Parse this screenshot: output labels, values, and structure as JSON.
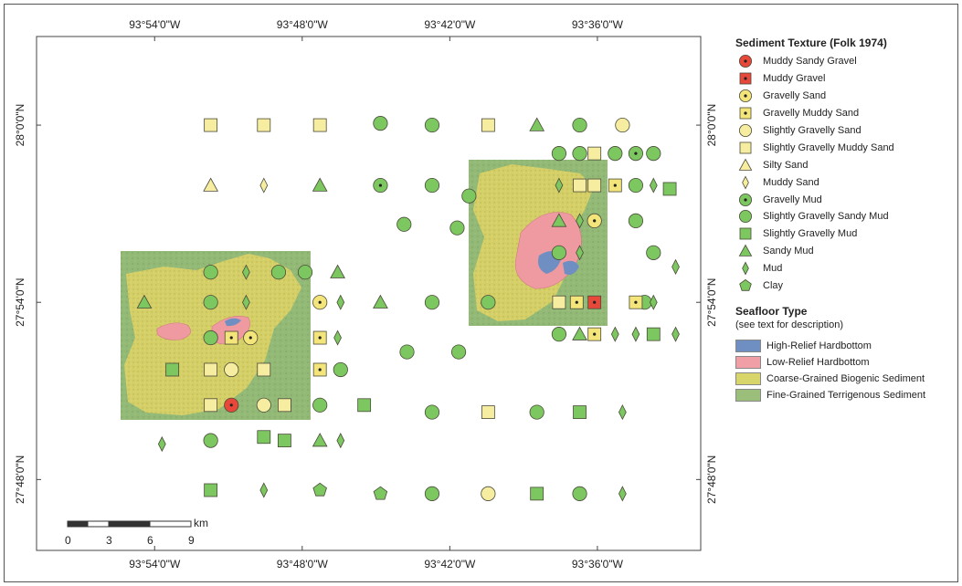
{
  "map": {
    "lon_ticks": [
      "93°54'0\"W",
      "93°48'0\"W",
      "93°42'0\"W",
      "93°36'0\"W"
    ],
    "lat_ticks": [
      "28°0'0\"N",
      "27°54'0\"N",
      "27°48'0\"N"
    ],
    "scale_bar": {
      "labels": [
        "0",
        "3",
        "6",
        "9"
      ],
      "unit": "km"
    }
  },
  "legend": {
    "texture_title": "Sediment Texture (Folk 1974)",
    "texture_items": [
      {
        "label": "Muddy Sandy Gravel",
        "symbol": "circle-dot",
        "color": "#e8483a"
      },
      {
        "label": "Muddy Gravel",
        "symbol": "square-dot",
        "color": "#e8483a"
      },
      {
        "label": "Gravelly Sand",
        "symbol": "circle-dot",
        "color": "#f3e57a"
      },
      {
        "label": "Gravelly Muddy Sand",
        "symbol": "square-dot",
        "color": "#f3e57a"
      },
      {
        "label": "Slightly Gravelly Sand",
        "symbol": "circle",
        "color": "#f7eda0"
      },
      {
        "label": "Slightly Gravelly Muddy Sand",
        "symbol": "square",
        "color": "#f7eda0"
      },
      {
        "label": "Silty Sand",
        "symbol": "triangle",
        "color": "#f7eda0"
      },
      {
        "label": "Muddy Sand",
        "symbol": "diamond",
        "color": "#f7eda0"
      },
      {
        "label": "Gravelly Mud",
        "symbol": "circle-dot",
        "color": "#7cc760"
      },
      {
        "label": "Slightly Gravelly Sandy Mud",
        "symbol": "circle",
        "color": "#7cc760"
      },
      {
        "label": "Slightly Gravelly Mud",
        "symbol": "square",
        "color": "#7cc760"
      },
      {
        "label": "Sandy Mud",
        "symbol": "triangle",
        "color": "#7cc760"
      },
      {
        "label": "Mud",
        "symbol": "diamond",
        "color": "#7cc760"
      },
      {
        "label": "Clay",
        "symbol": "pentagon",
        "color": "#7cc760"
      }
    ],
    "seafloor_title": "Seafloor Type",
    "seafloor_subtitle": "(see text for description)",
    "seafloor_items": [
      {
        "label": "High-Relief Hardbottom",
        "color": "#6f8fc2"
      },
      {
        "label": "Low-Relief Hardbottom",
        "color": "#ef9fa5"
      },
      {
        "label": "Coarse-Grained Biogenic Sediment",
        "color": "#d8d56a"
      },
      {
        "label": "Fine-Grained Terrigenous Sediment",
        "color": "#9bbf7a"
      }
    ]
  },
  "samples": [
    {
      "t": 5,
      "lon": -93.862,
      "lat": 28.0
    },
    {
      "t": 5,
      "lon": -93.826,
      "lat": 28.0
    },
    {
      "t": 5,
      "lon": -93.788,
      "lat": 28.0
    },
    {
      "t": 9,
      "lon": -93.747,
      "lat": 28.001
    },
    {
      "t": 9,
      "lon": -93.712,
      "lat": 28.0
    },
    {
      "t": 5,
      "lon": -93.674,
      "lat": 28.0
    },
    {
      "t": 11,
      "lon": -93.641,
      "lat": 28.0
    },
    {
      "t": 9,
      "lon": -93.612,
      "lat": 28.0
    },
    {
      "t": 4,
      "lon": -93.583,
      "lat": 28.0
    },
    {
      "t": 6,
      "lon": -93.862,
      "lat": 27.966
    },
    {
      "t": 7,
      "lon": -93.826,
      "lat": 27.966
    },
    {
      "t": 11,
      "lon": -93.788,
      "lat": 27.966
    },
    {
      "t": 8,
      "lon": -93.747,
      "lat": 27.966
    },
    {
      "t": 9,
      "lon": -93.712,
      "lat": 27.966
    },
    {
      "t": 9,
      "lon": -93.687,
      "lat": 27.96
    },
    {
      "t": 10,
      "lon": -93.551,
      "lat": 27.964
    },
    {
      "t": 12,
      "lon": -93.547,
      "lat": 27.92
    },
    {
      "t": 9,
      "lon": -93.731,
      "lat": 27.944
    },
    {
      "t": 9,
      "lon": -93.695,
      "lat": 27.942
    },
    {
      "t": 11,
      "lon": -93.907,
      "lat": 27.9
    },
    {
      "t": 11,
      "lon": -93.747,
      "lat": 27.9
    },
    {
      "t": 9,
      "lon": -93.712,
      "lat": 27.9
    },
    {
      "t": 9,
      "lon": -93.674,
      "lat": 27.9
    },
    {
      "t": 9,
      "lon": -93.568,
      "lat": 27.9
    },
    {
      "t": 12,
      "lon": -93.547,
      "lat": 27.882
    },
    {
      "t": 9,
      "lon": -93.729,
      "lat": 27.872
    },
    {
      "t": 9,
      "lon": -93.694,
      "lat": 27.872
    },
    {
      "t": 10,
      "lon": -93.888,
      "lat": 27.862
    },
    {
      "t": 9,
      "lon": -93.712,
      "lat": 27.838
    },
    {
      "t": 5,
      "lon": -93.674,
      "lat": 27.838
    },
    {
      "t": 9,
      "lon": -93.641,
      "lat": 27.838
    },
    {
      "t": 10,
      "lon": -93.612,
      "lat": 27.838
    },
    {
      "t": 12,
      "lon": -93.583,
      "lat": 27.838
    },
    {
      "t": 12,
      "lon": -93.895,
      "lat": 27.82
    },
    {
      "t": 10,
      "lon": -93.862,
      "lat": 27.794
    },
    {
      "t": 12,
      "lon": -93.826,
      "lat": 27.794
    },
    {
      "t": 13,
      "lon": -93.788,
      "lat": 27.794
    },
    {
      "t": 13,
      "lon": -93.747,
      "lat": 27.792
    },
    {
      "t": 9,
      "lon": -93.712,
      "lat": 27.792
    },
    {
      "t": 4,
      "lon": -93.674,
      "lat": 27.792
    },
    {
      "t": 10,
      "lon": -93.641,
      "lat": 27.792
    },
    {
      "t": 9,
      "lon": -93.612,
      "lat": 27.792
    },
    {
      "t": 12,
      "lon": -93.583,
      "lat": 27.792
    },
    {
      "t": 9,
      "lon": -93.862,
      "lat": 27.917
    },
    {
      "t": 12,
      "lon": -93.838,
      "lat": 27.917
    },
    {
      "t": 9,
      "lon": -93.816,
      "lat": 27.917
    },
    {
      "t": 9,
      "lon": -93.798,
      "lat": 27.917
    },
    {
      "t": 11,
      "lon": -93.776,
      "lat": 27.917
    },
    {
      "t": 9,
      "lon": -93.862,
      "lat": 27.9
    },
    {
      "t": 12,
      "lon": -93.838,
      "lat": 27.9
    },
    {
      "t": 2,
      "lon": -93.788,
      "lat": 27.9
    },
    {
      "t": 12,
      "lon": -93.774,
      "lat": 27.9
    },
    {
      "t": 9,
      "lon": -93.862,
      "lat": 27.88
    },
    {
      "t": 3,
      "lon": -93.848,
      "lat": 27.88
    },
    {
      "t": 2,
      "lon": -93.835,
      "lat": 27.88
    },
    {
      "t": 3,
      "lon": -93.788,
      "lat": 27.88
    },
    {
      "t": 12,
      "lon": -93.776,
      "lat": 27.88
    },
    {
      "t": 5,
      "lon": -93.862,
      "lat": 27.862
    },
    {
      "t": 4,
      "lon": -93.848,
      "lat": 27.862
    },
    {
      "t": 5,
      "lon": -93.826,
      "lat": 27.862
    },
    {
      "t": 3,
      "lon": -93.788,
      "lat": 27.862
    },
    {
      "t": 9,
      "lon": -93.774,
      "lat": 27.862
    },
    {
      "t": 5,
      "lon": -93.862,
      "lat": 27.842
    },
    {
      "t": 0,
      "lon": -93.848,
      "lat": 27.842
    },
    {
      "t": 4,
      "lon": -93.826,
      "lat": 27.842
    },
    {
      "t": 5,
      "lon": -93.812,
      "lat": 27.842
    },
    {
      "t": 9,
      "lon": -93.788,
      "lat": 27.842
    },
    {
      "t": 10,
      "lon": -93.758,
      "lat": 27.842
    },
    {
      "t": 9,
      "lon": -93.862,
      "lat": 27.822
    },
    {
      "t": 10,
      "lon": -93.826,
      "lat": 27.824
    },
    {
      "t": 10,
      "lon": -93.812,
      "lat": 27.822
    },
    {
      "t": 11,
      "lon": -93.788,
      "lat": 27.822
    },
    {
      "t": 12,
      "lon": -93.774,
      "lat": 27.822
    },
    {
      "t": 9,
      "lon": -93.626,
      "lat": 27.984
    },
    {
      "t": 9,
      "lon": -93.612,
      "lat": 27.984
    },
    {
      "t": 5,
      "lon": -93.602,
      "lat": 27.984
    },
    {
      "t": 9,
      "lon": -93.588,
      "lat": 27.984
    },
    {
      "t": 8,
      "lon": -93.574,
      "lat": 27.984
    },
    {
      "t": 9,
      "lon": -93.562,
      "lat": 27.984
    },
    {
      "t": 12,
      "lon": -93.626,
      "lat": 27.966
    },
    {
      "t": 5,
      "lon": -93.612,
      "lat": 27.966
    },
    {
      "t": 5,
      "lon": -93.602,
      "lat": 27.966
    },
    {
      "t": 3,
      "lon": -93.588,
      "lat": 27.966
    },
    {
      "t": 9,
      "lon": -93.574,
      "lat": 27.966
    },
    {
      "t": 12,
      "lon": -93.562,
      "lat": 27.966
    },
    {
      "t": 11,
      "lon": -93.626,
      "lat": 27.946
    },
    {
      "t": 12,
      "lon": -93.612,
      "lat": 27.946
    },
    {
      "t": 2,
      "lon": -93.602,
      "lat": 27.946
    },
    {
      "t": 9,
      "lon": -93.574,
      "lat": 27.946
    },
    {
      "t": 9,
      "lon": -93.626,
      "lat": 27.928
    },
    {
      "t": 12,
      "lon": -93.612,
      "lat": 27.928
    },
    {
      "t": 9,
      "lon": -93.562,
      "lat": 27.928
    },
    {
      "t": 5,
      "lon": -93.626,
      "lat": 27.9
    },
    {
      "t": 3,
      "lon": -93.614,
      "lat": 27.9
    },
    {
      "t": 1,
      "lon": -93.602,
      "lat": 27.9
    },
    {
      "t": 3,
      "lon": -93.574,
      "lat": 27.9
    },
    {
      "t": 12,
      "lon": -93.562,
      "lat": 27.9
    },
    {
      "t": 9,
      "lon": -93.626,
      "lat": 27.882
    },
    {
      "t": 11,
      "lon": -93.612,
      "lat": 27.882
    },
    {
      "t": 3,
      "lon": -93.602,
      "lat": 27.882
    },
    {
      "t": 12,
      "lon": -93.588,
      "lat": 27.882
    },
    {
      "t": 12,
      "lon": -93.574,
      "lat": 27.882
    },
    {
      "t": 10,
      "lon": -93.562,
      "lat": 27.882
    }
  ]
}
